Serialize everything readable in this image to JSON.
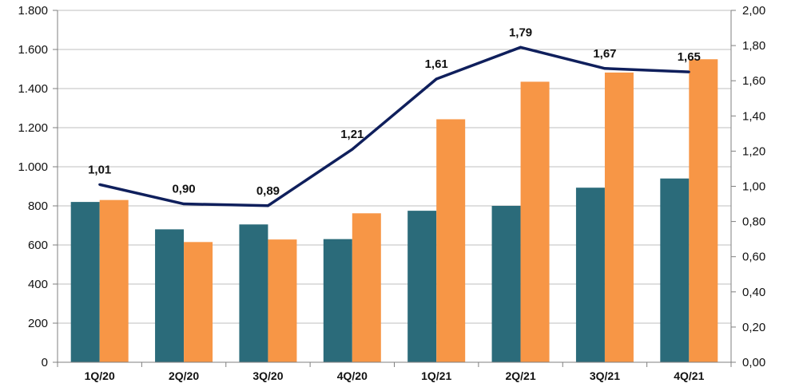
{
  "chart_data": {
    "type": "bar",
    "categories": [
      "1Q/20",
      "2Q/20",
      "3Q/20",
      "4Q/20",
      "1Q/21",
      "2Q/21",
      "3Q/21",
      "4Q/21"
    ],
    "series": [
      {
        "type": "bar",
        "axis": "left",
        "color": "#2b6b7a",
        "values": [
          820,
          680,
          705,
          630,
          775,
          800,
          893,
          940
        ]
      },
      {
        "type": "bar",
        "axis": "left",
        "color": "#f79646",
        "values": [
          830,
          615,
          628,
          762,
          1243,
          1435,
          1482,
          1550
        ]
      },
      {
        "type": "line",
        "axis": "right",
        "color": "#0f1f5c",
        "values": [
          1.01,
          0.9,
          0.89,
          1.21,
          1.61,
          1.79,
          1.67,
          1.65
        ],
        "labels": [
          "1,01",
          "0,90",
          "0,89",
          "1,21",
          "1,61",
          "1,79",
          "1,67",
          "1,65"
        ]
      }
    ],
    "y_left": {
      "ylim": [
        0,
        1800
      ],
      "ticks": [
        0,
        200,
        400,
        600,
        800,
        1000,
        1200,
        1400,
        1600,
        1800
      ],
      "tick_labels": [
        "0",
        "200",
        "400",
        "600",
        "800",
        "1.000",
        "1.200",
        "1.400",
        "1.600",
        "1.800"
      ]
    },
    "y_right": {
      "ylim": [
        0,
        2.0
      ],
      "ticks": [
        0,
        0.2,
        0.4,
        0.6,
        0.8,
        1.0,
        1.2,
        1.4,
        1.6,
        1.8,
        2.0
      ],
      "tick_labels": [
        "0,00",
        "0,20",
        "0,40",
        "0,60",
        "0,80",
        "1,00",
        "1,20",
        "1,40",
        "1,60",
        "1,80",
        "2,00"
      ]
    },
    "grid": true,
    "legend": "none",
    "title": "",
    "xlabel": "",
    "ylabel": ""
  }
}
